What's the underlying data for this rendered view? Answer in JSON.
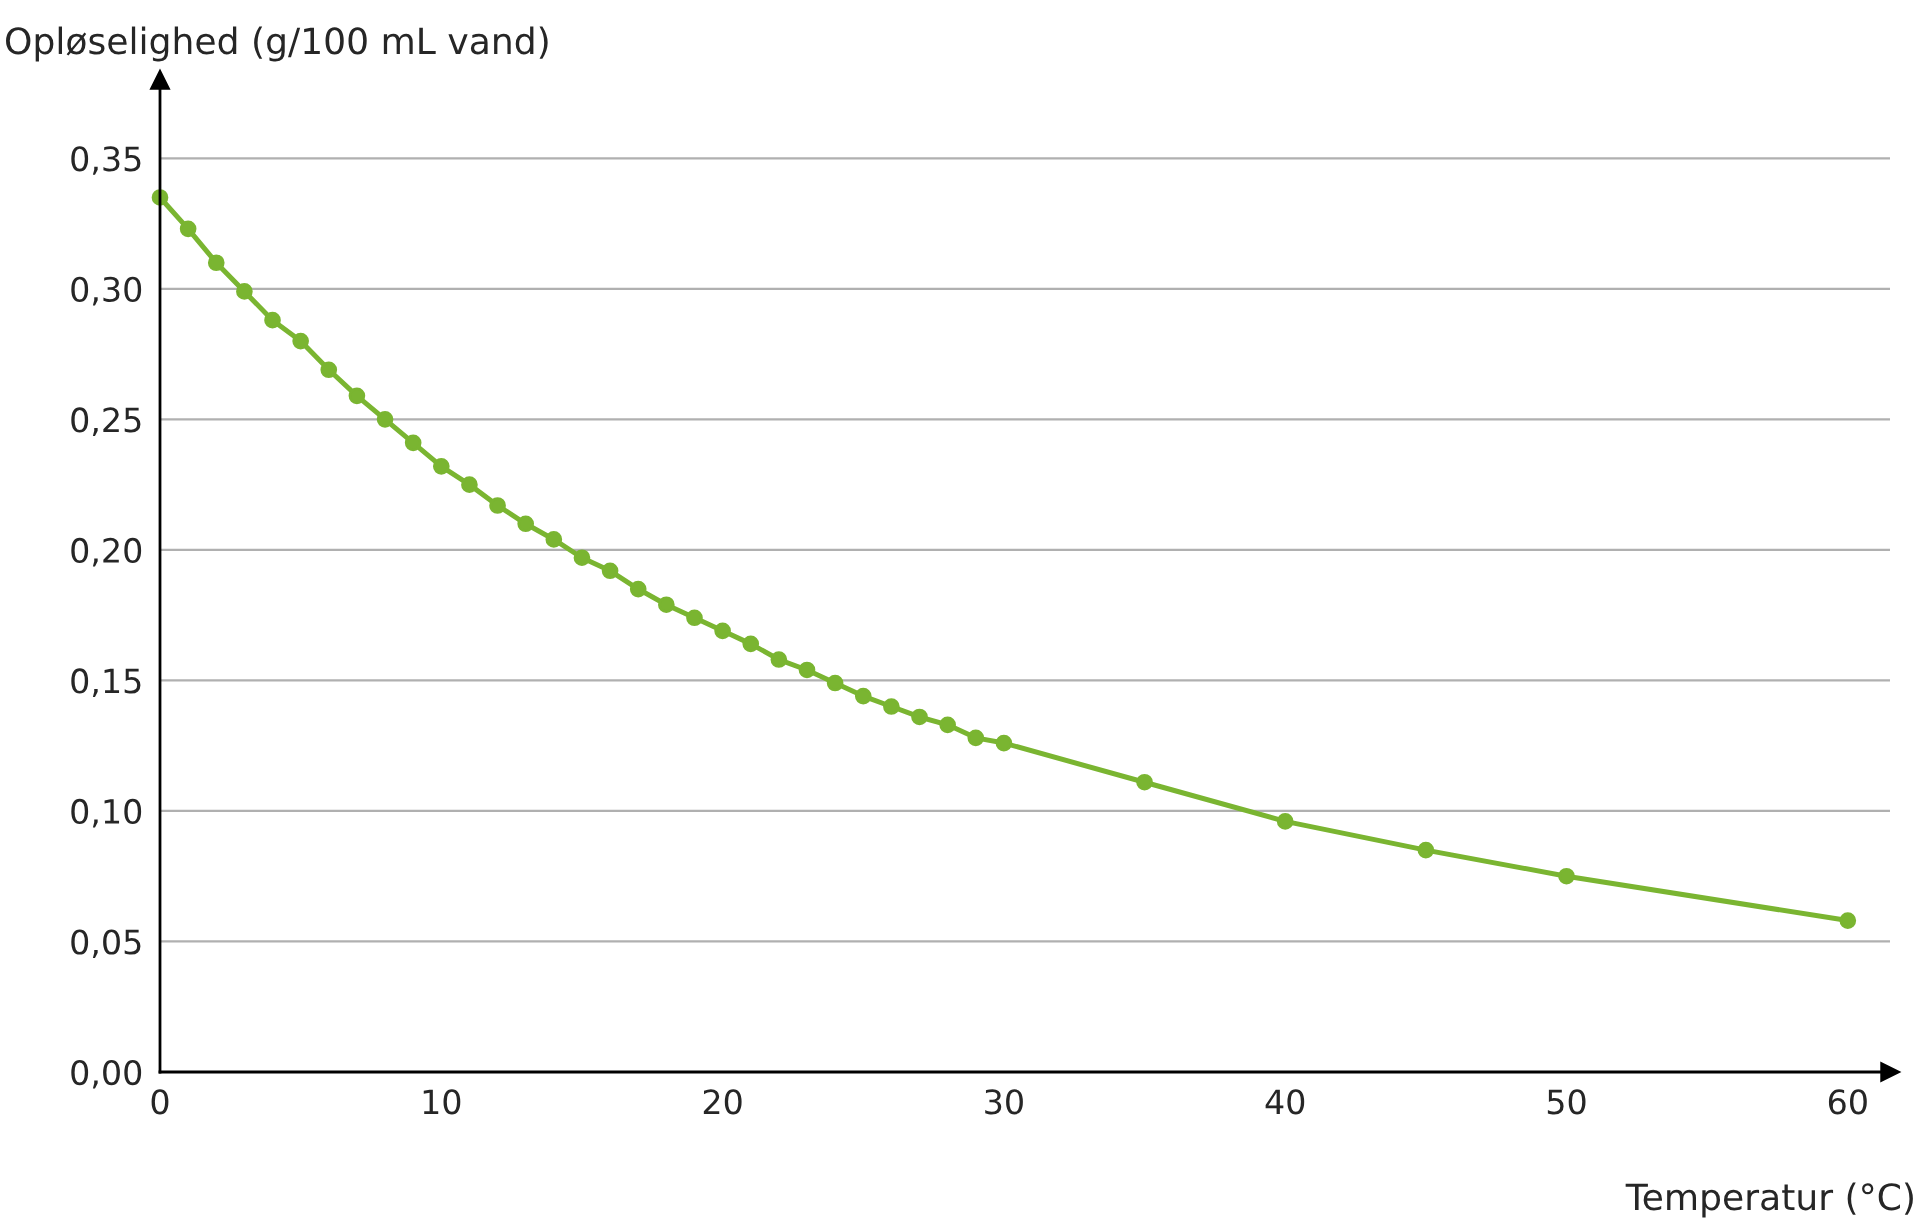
{
  "chart_data": {
    "type": "line",
    "xlabel": "Temperatur (°C)",
    "ylabel": "Opløselighed (g/100 mL vand)",
    "x": [
      0,
      1,
      2,
      3,
      4,
      5,
      6,
      7,
      8,
      9,
      10,
      11,
      12,
      13,
      14,
      15,
      16,
      17,
      18,
      19,
      20,
      21,
      22,
      23,
      24,
      25,
      26,
      27,
      28,
      29,
      30,
      35,
      40,
      45,
      50,
      60
    ],
    "series": [
      {
        "color": "#7ab531",
        "values": [
          0.335,
          0.323,
          0.31,
          0.299,
          0.288,
          0.28,
          0.269,
          0.259,
          0.25,
          0.241,
          0.232,
          0.225,
          0.217,
          0.21,
          0.204,
          0.197,
          0.192,
          0.185,
          0.179,
          0.174,
          0.169,
          0.164,
          0.158,
          0.154,
          0.149,
          0.144,
          0.14,
          0.136,
          0.133,
          0.128,
          0.126,
          0.111,
          0.096,
          0.085,
          0.075,
          0.058
        ]
      }
    ],
    "xlim": [
      0,
      61.5
    ],
    "ylim": [
      0,
      0.38
    ],
    "xticks": [
      0,
      10,
      20,
      30,
      40,
      50,
      60
    ],
    "yticks": [
      {
        "value": 0,
        "label": "0,00"
      },
      {
        "value": 0.05,
        "label": "0,05"
      },
      {
        "value": 0.1,
        "label": "0,10"
      },
      {
        "value": 0.15,
        "label": "0,15"
      },
      {
        "value": 0.2,
        "label": "0,20"
      },
      {
        "value": 0.25,
        "label": "0,25"
      },
      {
        "value": 0.3,
        "label": "0,30"
      },
      {
        "value": 0.35,
        "label": "0,35"
      }
    ],
    "grid": "y",
    "marker": "circle",
    "line_style": "solid",
    "legend": false
  }
}
